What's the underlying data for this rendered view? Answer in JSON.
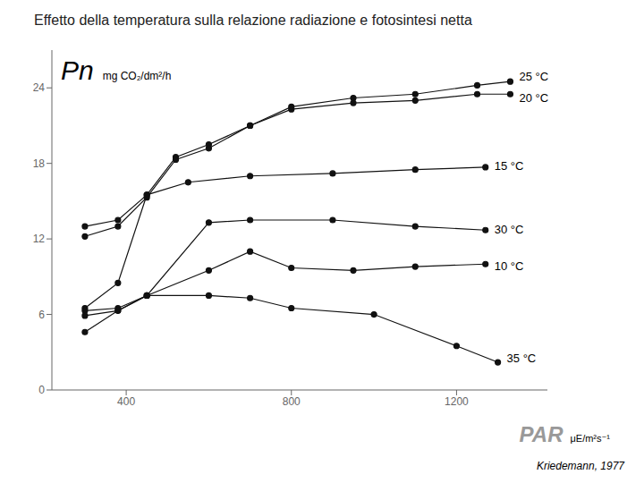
{
  "chart_data": {
    "type": "line",
    "title": "Effetto della temperatura sulla relazione radiazione e fotosintesi netta",
    "ylabel": "Pn",
    "xlabel": "PAR",
    "annotations": [
      "mg CO₂/dm²/h",
      "μE/m²s⁻¹",
      "Kriedemann, 1977"
    ],
    "marker": "circle",
    "grid": false,
    "xlim": [
      220,
      1420
    ],
    "xticks": [
      400,
      800,
      1200
    ],
    "ylim": [
      0,
      27
    ],
    "yticks": [
      0,
      6,
      12,
      18,
      24
    ],
    "series": [
      {
        "name": "25 °C",
        "color": "#111111",
        "x": [
          300,
          380,
          450,
          520,
          600,
          700,
          800,
          950,
          1100,
          1250,
          1330
        ],
        "values": [
          13.0,
          13.5,
          15.5,
          18.5,
          19.5,
          21.0,
          22.5,
          23.2,
          23.5,
          24.2,
          24.5
        ]
      },
      {
        "name": "20 °C",
        "color": "#111111",
        "x": [
          300,
          380,
          450,
          520,
          600,
          700,
          800,
          950,
          1100,
          1250,
          1330
        ],
        "values": [
          12.2,
          13.0,
          15.3,
          18.3,
          19.2,
          21.0,
          22.3,
          22.8,
          23.0,
          23.5,
          23.5
        ]
      },
      {
        "name": "15 °C",
        "color": "#111111",
        "x": [
          300,
          380,
          450,
          550,
          700,
          900,
          1100,
          1270
        ],
        "values": [
          6.5,
          8.5,
          15.5,
          16.5,
          17.0,
          17.2,
          17.5,
          17.7
        ]
      },
      {
        "name": "30 °C",
        "color": "#111111",
        "x": [
          300,
          380,
          450,
          600,
          700,
          900,
          1100,
          1270
        ],
        "values": [
          6.3,
          6.5,
          7.5,
          13.3,
          13.5,
          13.5,
          13.0,
          12.7
        ]
      },
      {
        "name": "10 °C",
        "color": "#111111",
        "x": [
          300,
          380,
          450,
          600,
          700,
          800,
          950,
          1100,
          1270
        ],
        "values": [
          5.9,
          6.3,
          7.5,
          9.5,
          11.0,
          9.7,
          9.5,
          9.8,
          10.0
        ]
      },
      {
        "name": "35 °C",
        "color": "#111111",
        "x": [
          300,
          380,
          450,
          600,
          700,
          800,
          1000,
          1200,
          1300
        ],
        "values": [
          4.6,
          6.3,
          7.5,
          7.5,
          7.3,
          6.5,
          6.0,
          3.5,
          2.2
        ]
      }
    ]
  }
}
